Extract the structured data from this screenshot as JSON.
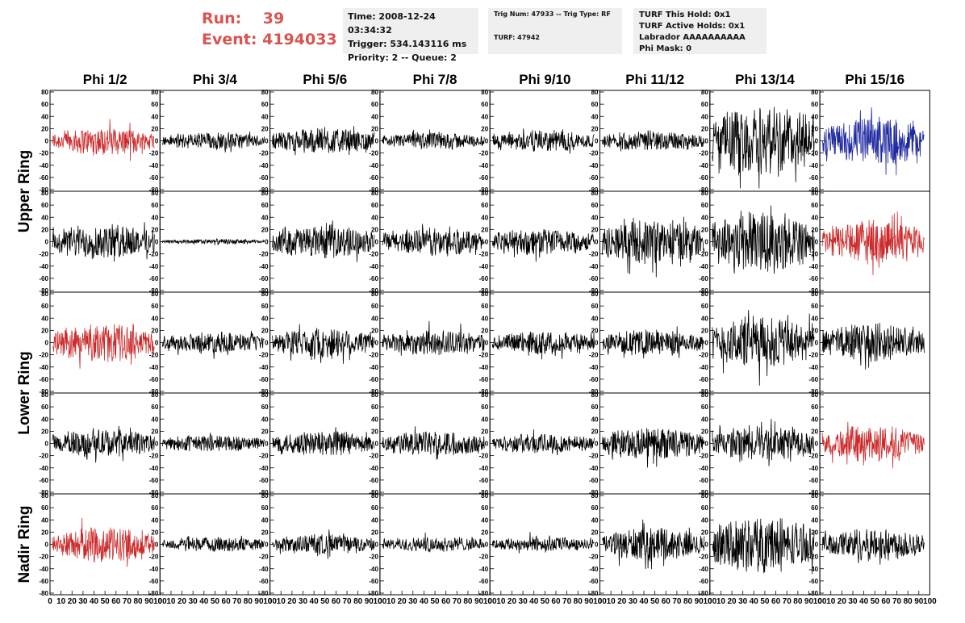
{
  "header": {
    "run_label": "Run:",
    "run_value": "39",
    "event_label": "Event:",
    "event_value": "4194033",
    "info_box_1": [
      "Time: 2008-12-24 03:34:32",
      "Trigger: 534.143116 ms",
      "Priority: 2 -- Queue: 2"
    ],
    "info_box_2": [
      "Trig Num: 47933 -- Trig Type: RF",
      "TURF: 47942"
    ],
    "info_box_3": [
      "TURF This Hold: 0x1",
      "TURF Active Holds: 0x1",
      "Labrador AAAAAAAAAA",
      "Phi Mask: 0"
    ]
  },
  "colors": {
    "normal": "#000000",
    "highlight": "#cc2a2a",
    "blue": "#1f2aa0",
    "run_text": "#d9534f"
  },
  "chart_data": {
    "type": "line",
    "columns": [
      "Phi 1/2",
      "Phi 3/4",
      "Phi 5/6",
      "Phi 7/8",
      "Phi 9/10",
      "Phi 11/12",
      "Phi 13/14",
      "Phi 15/16"
    ],
    "ring_labels": [
      "Upper Ring",
      "Lower Ring",
      "Nadir Ring"
    ],
    "ring_rows": {
      "Upper Ring": [
        0,
        1
      ],
      "Lower Ring": [
        2,
        3
      ],
      "Nadir Ring": [
        4
      ]
    },
    "y_ticks": [
      -80,
      -60,
      -40,
      -20,
      0,
      20,
      40,
      60,
      80
    ],
    "x_ticks_bottom": [
      "0",
      "10",
      "20",
      "30",
      "40",
      "50",
      "60",
      "70",
      "80",
      "90",
      "100"
    ],
    "xlim": [
      0,
      100
    ],
    "ylim": [
      -80,
      80
    ],
    "n_samples": 260,
    "waveform_amplitudes": [
      [
        22,
        14,
        20,
        13,
        17,
        16,
        60,
        38
      ],
      [
        28,
        4,
        26,
        22,
        22,
        36,
        50,
        34
      ],
      [
        30,
        16,
        24,
        20,
        18,
        20,
        42,
        30
      ],
      [
        22,
        14,
        20,
        20,
        16,
        26,
        28,
        28
      ],
      [
        28,
        12,
        16,
        12,
        12,
        26,
        44,
        26
      ]
    ],
    "waveform_colors": [
      [
        "highlight",
        "normal",
        "normal",
        "normal",
        "normal",
        "normal",
        "normal",
        "blue"
      ],
      [
        "normal",
        "normal",
        "normal",
        "normal",
        "normal",
        "normal",
        "normal",
        "highlight"
      ],
      [
        "highlight",
        "normal",
        "normal",
        "normal",
        "normal",
        "normal",
        "normal",
        "normal"
      ],
      [
        "normal",
        "normal",
        "normal",
        "normal",
        "normal",
        "normal",
        "normal",
        "highlight"
      ],
      [
        "highlight",
        "normal",
        "normal",
        "normal",
        "normal",
        "normal",
        "normal",
        "normal"
      ]
    ]
  }
}
